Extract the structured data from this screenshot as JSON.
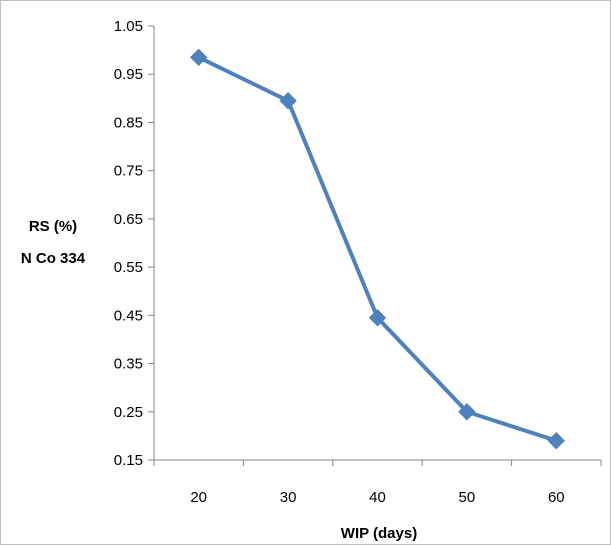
{
  "chart_data": {
    "type": "line",
    "title": "",
    "xlabel": "WIP (days)",
    "ylabel_lines": [
      "RS (%)",
      "N Co 334"
    ],
    "x": [
      20,
      30,
      40,
      50,
      60
    ],
    "series": [
      {
        "values": [
          0.985,
          0.895,
          0.445,
          0.25,
          0.19
        ],
        "color": "#4f81bd",
        "marker": "diamond"
      }
    ],
    "xlim": [
      15,
      65
    ],
    "ylim": [
      0.15,
      1.05
    ],
    "y_ticks": [
      "0.15",
      "0.25",
      "0.35",
      "0.45",
      "0.55",
      "0.65",
      "0.75",
      "0.85",
      "0.95",
      "1.05"
    ],
    "x_ticks": [
      "20",
      "30",
      "40",
      "50",
      "60"
    ],
    "grid": false,
    "legend": "none",
    "axis_color": "#868686"
  }
}
